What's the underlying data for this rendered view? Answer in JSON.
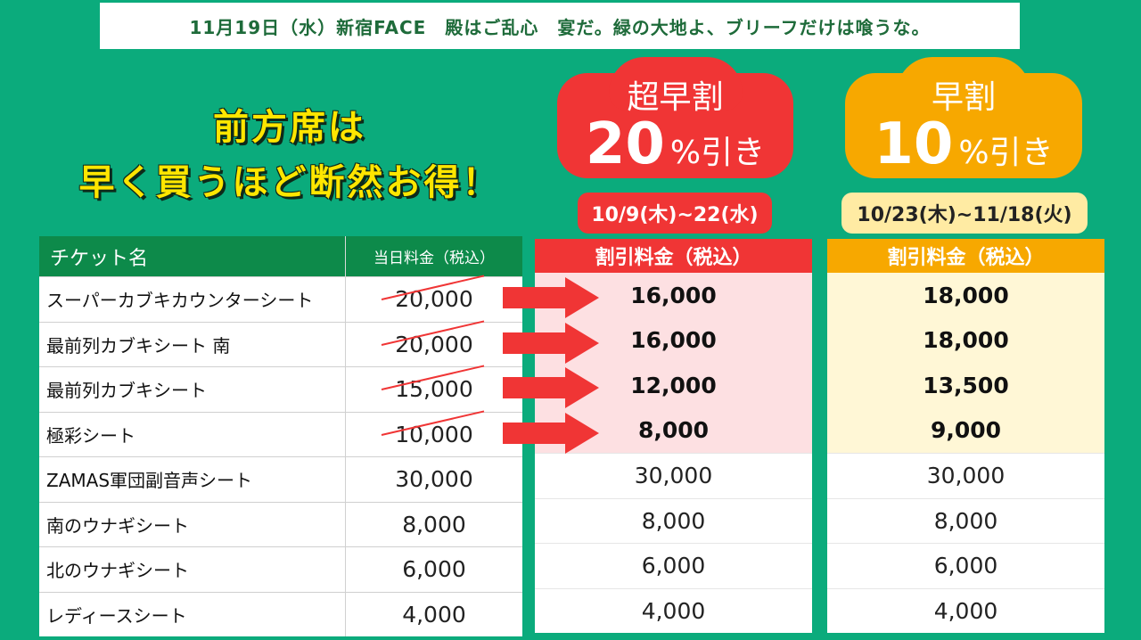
{
  "banner": "11月19日（水）新宿FACE　殿はご乱心　宴だ。緑の大地よ、ブリーフだけは喰うな。",
  "headline": {
    "line1": "前方席は",
    "line2": "早く買うほど断然お得！"
  },
  "super_early": {
    "title": "超早割",
    "percent": "20",
    "suffix": "%引き",
    "period": "10/9(木)~22(水)",
    "header": "割引料金（税込）",
    "prices": [
      "16,000",
      "16,000",
      "12,000",
      "8,000",
      "30,000",
      "8,000",
      "6,000",
      "4,000"
    ]
  },
  "early": {
    "title": "早割",
    "percent": "10",
    "suffix": "%引き",
    "period": "10/23(木)~11/18(火)",
    "header": "割引料金（税込）",
    "prices": [
      "18,000",
      "18,000",
      "13,500",
      "9,000",
      "30,000",
      "8,000",
      "6,000",
      "4,000"
    ]
  },
  "table": {
    "col_name": "チケット名",
    "col_price": "当日料金（税込）",
    "rows": [
      {
        "name": "スーパーカブキカウンターシート",
        "price": "20,000"
      },
      {
        "name": "最前列カブキシート 南",
        "price": "20,000"
      },
      {
        "name": "最前列カブキシート",
        "price": "15,000"
      },
      {
        "name": "極彩シート",
        "price": "10,000"
      },
      {
        "name": "ZAMAS軍団副音声シート",
        "price": "30,000"
      },
      {
        "name": "南のウナギシート",
        "price": "8,000"
      },
      {
        "name": "北のウナギシート",
        "price": "6,000"
      },
      {
        "name": "レディースシート",
        "price": "4,000"
      }
    ]
  },
  "colors": {
    "background": "#0bab7c",
    "red": "#f03535",
    "orange": "#f7a800",
    "headline_yellow": "#ffe600"
  }
}
